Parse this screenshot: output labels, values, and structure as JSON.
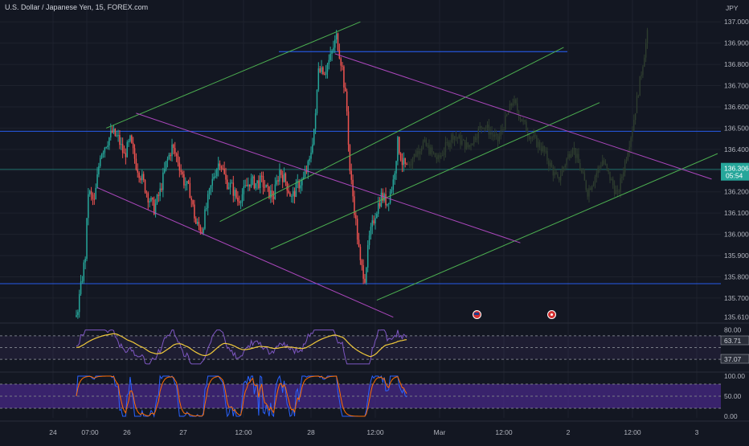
{
  "symbol": {
    "title": "U.S. Dollar / Japanese Yen, 15, FOREX.com",
    "currency": "JPY"
  },
  "colors": {
    "background": "#131722",
    "grid": "#1e222d",
    "candle_up": "#26a69a",
    "candle_down": "#ef5350",
    "projection": "#2e3d2f",
    "channel_green": "#4caf50",
    "channel_magenta": "#ab47bc",
    "level_blue": "#2962ff",
    "rsi_line": "#7e57c2",
    "rsi_ma": "#f0c93a",
    "stoch_k": "#2962ff",
    "stoch_d": "#ff6d00",
    "stoch_band": "#4a2a8c"
  },
  "chart_data": {
    "type": "candlestick",
    "main": {
      "y_ticks": [
        "137.000",
        "136.900",
        "136.800",
        "136.700",
        "136.600",
        "136.500",
        "136.400",
        "136.306",
        "136.200",
        "136.100",
        "136.000",
        "135.900",
        "135.800",
        "135.700",
        "135.610"
      ],
      "ylim": [
        135.59,
        137.05
      ],
      "last_price": "136.306",
      "countdown": "05:54",
      "horizontal_levels": [
        136.485,
        136.306,
        135.768
      ],
      "resistance_segment": 136.86,
      "price_path": [
        [
          0,
          135.61
        ],
        [
          3,
          135.75
        ],
        [
          6,
          135.9
        ],
        [
          8,
          136.2
        ],
        [
          12,
          136.15
        ],
        [
          16,
          136.38
        ],
        [
          20,
          136.43
        ],
        [
          24,
          136.48
        ],
        [
          28,
          136.45
        ],
        [
          32,
          136.37
        ],
        [
          36,
          136.44
        ],
        [
          40,
          136.33
        ],
        [
          44,
          136.26
        ],
        [
          48,
          136.18
        ],
        [
          52,
          136.12
        ],
        [
          56,
          136.2
        ],
        [
          60,
          136.33
        ],
        [
          64,
          136.41
        ],
        [
          68,
          136.35
        ],
        [
          72,
          136.25
        ],
        [
          76,
          136.2
        ],
        [
          80,
          136.05
        ],
        [
          84,
          136.02
        ],
        [
          88,
          136.16
        ],
        [
          92,
          136.28
        ],
        [
          96,
          136.35
        ],
        [
          100,
          136.25
        ],
        [
          104,
          136.22
        ],
        [
          108,
          136.16
        ],
        [
          112,
          136.2
        ],
        [
          116,
          136.25
        ],
        [
          120,
          136.24
        ],
        [
          124,
          136.25
        ],
        [
          128,
          136.2
        ],
        [
          132,
          136.18
        ],
        [
          136,
          136.3
        ],
        [
          140,
          136.25
        ],
        [
          144,
          136.17
        ],
        [
          148,
          136.23
        ],
        [
          152,
          136.26
        ],
        [
          156,
          136.34
        ],
        [
          160,
          136.55
        ],
        [
          162,
          136.8
        ],
        [
          166,
          136.77
        ],
        [
          170,
          136.83
        ],
        [
          174,
          136.93
        ],
        [
          178,
          136.78
        ],
        [
          181,
          136.58
        ],
        [
          183,
          136.3
        ],
        [
          186,
          136.12
        ],
        [
          190,
          135.86
        ],
        [
          193,
          135.8
        ],
        [
          196,
          135.98
        ],
        [
          200,
          136.1
        ],
        [
          204,
          136.18
        ],
        [
          208,
          136.15
        ],
        [
          212,
          136.25
        ],
        [
          215,
          136.43
        ],
        [
          218,
          136.34
        ],
        [
          221,
          136.31
        ]
      ],
      "projection_path": [
        [
          222,
          136.33
        ],
        [
          232,
          136.43
        ],
        [
          242,
          136.35
        ],
        [
          252,
          136.47
        ],
        [
          262,
          136.41
        ],
        [
          272,
          136.52
        ],
        [
          282,
          136.44
        ],
        [
          292,
          136.63
        ],
        [
          302,
          136.48
        ],
        [
          312,
          136.4
        ],
        [
          322,
          136.25
        ],
        [
          332,
          136.42
        ],
        [
          342,
          136.2
        ],
        [
          352,
          136.35
        ],
        [
          362,
          136.18
        ],
        [
          372,
          136.5
        ],
        [
          382,
          136.94
        ]
      ],
      "trendlines": [
        {
          "color": "green",
          "from": [
            20,
            136.5
          ],
          "to": [
            190,
            137.0
          ]
        },
        {
          "color": "green",
          "from": [
            96,
            136.06
          ],
          "to": [
            326,
            136.88
          ]
        },
        {
          "color": "green",
          "from": [
            130,
            135.93
          ],
          "to": [
            350,
            136.62
          ]
        },
        {
          "color": "green",
          "from": [
            201,
            135.69
          ],
          "to": [
            429,
            136.38
          ]
        },
        {
          "color": "magenta",
          "from": [
            40,
            136.57
          ],
          "to": [
            297,
            135.96
          ]
        },
        {
          "color": "magenta",
          "from": [
            14,
            136.22
          ],
          "to": [
            212,
            135.61
          ]
        },
        {
          "color": "magenta",
          "from": [
            173,
            136.85
          ],
          "to": [
            425,
            136.26
          ]
        }
      ],
      "x_labels": [
        "24",
        "07:00",
        "26",
        "27",
        "12:00",
        "28",
        "12:00",
        "Mar",
        "12:00",
        "2",
        "12:00",
        "3"
      ]
    },
    "rsi": {
      "y_ticks": [
        "80.00",
        "63.71",
        "37.07"
      ],
      "value": "63.71",
      "ma_value": "37.07",
      "upper": 70,
      "lower": 30
    },
    "stochastic": {
      "y_ticks": [
        "100.00",
        "50.00",
        "0.00"
      ],
      "upper": 80,
      "lower": 20
    }
  }
}
